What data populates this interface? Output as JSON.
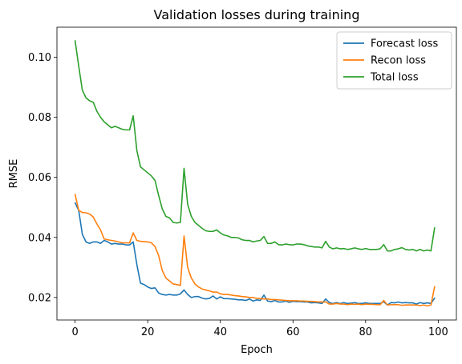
{
  "chart_data": {
    "type": "line",
    "title": "Validation losses during training",
    "xlabel": "Epoch",
    "ylabel": "RMSE",
    "xlim": [
      -5,
      105
    ],
    "ylim": [
      0.0125,
      0.11
    ],
    "xticks": [
      0,
      20,
      40,
      60,
      80,
      100
    ],
    "yticks": [
      0.02,
      0.04,
      0.06,
      0.08,
      0.1
    ],
    "legend_position": "top-right",
    "series": [
      {
        "name": "Forecast loss",
        "color": "#1f77b4",
        "x": [
          0,
          1,
          2,
          3,
          4,
          5,
          6,
          7,
          8,
          9,
          10,
          11,
          12,
          13,
          14,
          15,
          16,
          17,
          18,
          19,
          20,
          21,
          22,
          23,
          24,
          25,
          26,
          27,
          28,
          29,
          30,
          31,
          32,
          33,
          34,
          35,
          36,
          37,
          38,
          39,
          40,
          41,
          42,
          43,
          44,
          45,
          46,
          47,
          48,
          49,
          50,
          51,
          52,
          53,
          54,
          55,
          56,
          57,
          58,
          59,
          60,
          61,
          62,
          63,
          64,
          65,
          66,
          67,
          68,
          69,
          70,
          71,
          72,
          73,
          74,
          75,
          76,
          77,
          78,
          79,
          80,
          81,
          82,
          83,
          84,
          85,
          86,
          87,
          88,
          89,
          90,
          91,
          92,
          93,
          94,
          95,
          96,
          97,
          98,
          99
        ],
        "values": [
          0.0515,
          0.049,
          0.041,
          0.0385,
          0.038,
          0.0385,
          0.0385,
          0.038,
          0.039,
          0.0385,
          0.0378,
          0.038,
          0.0378,
          0.0378,
          0.0375,
          0.0375,
          0.0385,
          0.031,
          0.0248,
          0.0243,
          0.0235,
          0.023,
          0.0232,
          0.0215,
          0.021,
          0.0208,
          0.021,
          0.0208,
          0.0208,
          0.0212,
          0.0225,
          0.021,
          0.02,
          0.0203,
          0.0203,
          0.0198,
          0.0195,
          0.0197,
          0.0205,
          0.0195,
          0.0202,
          0.0196,
          0.0196,
          0.0195,
          0.0194,
          0.0192,
          0.0192,
          0.019,
          0.0195,
          0.0188,
          0.0192,
          0.019,
          0.0208,
          0.0188,
          0.0186,
          0.019,
          0.0185,
          0.0185,
          0.0188,
          0.0184,
          0.0187,
          0.0186,
          0.0186,
          0.0185,
          0.0185,
          0.0182,
          0.0183,
          0.0182,
          0.018,
          0.0195,
          0.0183,
          0.018,
          0.0183,
          0.018,
          0.0183,
          0.018,
          0.0181,
          0.0183,
          0.018,
          0.018,
          0.0182,
          0.018,
          0.018,
          0.018,
          0.018,
          0.0186,
          0.0175,
          0.0183,
          0.0182,
          0.0185,
          0.0182,
          0.0183,
          0.0182,
          0.0182,
          0.0178,
          0.0183,
          0.018,
          0.0182,
          0.018,
          0.0198
        ]
      },
      {
        "name": "Recon loss",
        "color": "#ff7f0e",
        "x": [
          0,
          1,
          2,
          3,
          4,
          5,
          6,
          7,
          8,
          9,
          10,
          11,
          12,
          13,
          14,
          15,
          16,
          17,
          18,
          19,
          20,
          21,
          22,
          23,
          24,
          25,
          26,
          27,
          28,
          29,
          30,
          31,
          32,
          33,
          34,
          35,
          36,
          37,
          38,
          39,
          40,
          41,
          42,
          43,
          44,
          45,
          46,
          47,
          48,
          49,
          50,
          51,
          52,
          53,
          54,
          55,
          56,
          57,
          58,
          59,
          60,
          61,
          62,
          63,
          64,
          65,
          66,
          67,
          68,
          69,
          70,
          71,
          72,
          73,
          74,
          75,
          76,
          77,
          78,
          79,
          80,
          81,
          82,
          83,
          84,
          85,
          86,
          87,
          88,
          89,
          90,
          91,
          92,
          93,
          94,
          95,
          96,
          97,
          98,
          99
        ],
        "values": [
          0.0543,
          0.049,
          0.0483,
          0.0482,
          0.0478,
          0.0468,
          0.0445,
          0.0425,
          0.0395,
          0.0392,
          0.039,
          0.0388,
          0.0385,
          0.0382,
          0.0382,
          0.0382,
          0.0415,
          0.039,
          0.0387,
          0.0386,
          0.0385,
          0.0382,
          0.037,
          0.034,
          0.029,
          0.0265,
          0.0255,
          0.0245,
          0.0243,
          0.024,
          0.0405,
          0.03,
          0.0265,
          0.0245,
          0.0235,
          0.0228,
          0.0225,
          0.0222,
          0.0218,
          0.0218,
          0.0212,
          0.021,
          0.021,
          0.0208,
          0.0206,
          0.0205,
          0.0203,
          0.0202,
          0.02,
          0.02,
          0.0197,
          0.0196,
          0.0195,
          0.0195,
          0.0193,
          0.0193,
          0.0192,
          0.0191,
          0.019,
          0.0189,
          0.0189,
          0.0189,
          0.0188,
          0.0188,
          0.0187,
          0.0187,
          0.0186,
          0.0185,
          0.0185,
          0.0185,
          0.0178,
          0.0178,
          0.018,
          0.0178,
          0.0178,
          0.0176,
          0.0178,
          0.0177,
          0.0178,
          0.0176,
          0.0178,
          0.0177,
          0.0177,
          0.0176,
          0.0176,
          0.019,
          0.0175,
          0.0176,
          0.0176,
          0.0176,
          0.0174,
          0.0175,
          0.0175,
          0.0175,
          0.0175,
          0.0173,
          0.0175,
          0.0172,
          0.0175,
          0.0236
        ]
      },
      {
        "name": "Total loss",
        "color": "#2ca02c",
        "x": [
          0,
          1,
          2,
          3,
          4,
          5,
          6,
          7,
          8,
          9,
          10,
          11,
          12,
          13,
          14,
          15,
          16,
          17,
          18,
          19,
          20,
          21,
          22,
          23,
          24,
          25,
          26,
          27,
          28,
          29,
          30,
          31,
          32,
          33,
          34,
          35,
          36,
          37,
          38,
          39,
          40,
          41,
          42,
          43,
          44,
          45,
          46,
          47,
          48,
          49,
          50,
          51,
          52,
          53,
          54,
          55,
          56,
          57,
          58,
          59,
          60,
          61,
          62,
          63,
          64,
          65,
          66,
          67,
          68,
          69,
          70,
          71,
          72,
          73,
          74,
          75,
          76,
          77,
          78,
          79,
          80,
          81,
          82,
          83,
          84,
          85,
          86,
          87,
          88,
          89,
          90,
          91,
          92,
          93,
          94,
          95,
          96,
          97,
          98,
          99
        ],
        "values": [
          0.1055,
          0.097,
          0.089,
          0.0865,
          0.0855,
          0.085,
          0.082,
          0.08,
          0.0785,
          0.0775,
          0.0765,
          0.077,
          0.0765,
          0.076,
          0.0758,
          0.0758,
          0.0805,
          0.069,
          0.0635,
          0.0625,
          0.0615,
          0.0605,
          0.059,
          0.054,
          0.0495,
          0.047,
          0.0465,
          0.045,
          0.0448,
          0.045,
          0.063,
          0.051,
          0.047,
          0.045,
          0.044,
          0.043,
          0.0422,
          0.042,
          0.042,
          0.0425,
          0.0415,
          0.0408,
          0.0405,
          0.04,
          0.04,
          0.0398,
          0.0392,
          0.039,
          0.039,
          0.0385,
          0.0388,
          0.039,
          0.0403,
          0.038,
          0.038,
          0.0385,
          0.0376,
          0.0375,
          0.0378,
          0.0376,
          0.0375,
          0.0378,
          0.0378,
          0.0376,
          0.0372,
          0.037,
          0.0368,
          0.0368,
          0.0365,
          0.0387,
          0.0368,
          0.0362,
          0.0365,
          0.0362,
          0.0363,
          0.036,
          0.0362,
          0.0365,
          0.0362,
          0.036,
          0.0363,
          0.036,
          0.036,
          0.036,
          0.0362,
          0.0376,
          0.0355,
          0.0355,
          0.036,
          0.0362,
          0.0366,
          0.036,
          0.0358,
          0.036,
          0.0355,
          0.036,
          0.0355,
          0.0358,
          0.0355,
          0.0432
        ]
      }
    ]
  }
}
